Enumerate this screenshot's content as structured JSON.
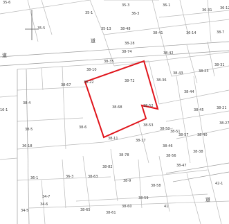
{
  "map": {
    "boundary_color": "#e0141b",
    "line_color": "#b9b9b9",
    "road_labels": [
      "道",
      "道",
      "道"
    ],
    "parcels": [
      "35-6",
      "35-1",
      "35-3",
      "36-1",
      "36-3",
      "36-31",
      "36-12",
      "35-5",
      "35-13",
      "38-48",
      "38-28",
      "36-14",
      "38-7",
      "38-41",
      "38-74",
      "38-42",
      "38-31",
      "38-35",
      "38-10",
      "38-43",
      "38-23",
      "38-72",
      "38-36",
      "38-22",
      "38-67",
      "38-44",
      "38-4",
      "38-68",
      "38-52",
      "38-45",
      "38-21",
      "16-1",
      "38-27",
      "38-5",
      "38-6",
      "38-53",
      "38-50",
      "38-51",
      "38-57",
      "38-40",
      "38-11",
      "38-17",
      "36-18",
      "38-46",
      "38-38",
      "38-78",
      "38-47",
      "38-56",
      "38-82",
      "36-1",
      "36-3",
      "38-63",
      "38-9",
      "38-58",
      "42-1",
      "34-7",
      "34-6",
      "38-59",
      "38-65",
      "38-61",
      "38-60",
      "41",
      "34-5"
    ]
  }
}
